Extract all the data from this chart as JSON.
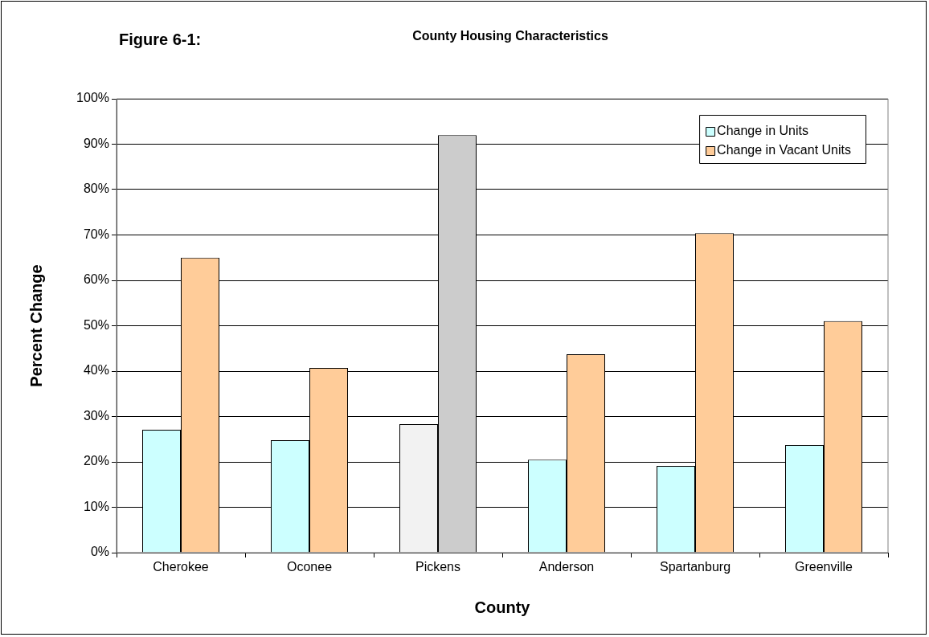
{
  "chart_data": {
    "type": "bar",
    "title": "County Housing Characteristics",
    "annotations": [
      "Figure 6-1:"
    ],
    "xlabel": "County",
    "ylabel": "Percent Change",
    "categories": [
      "Cherokee",
      "Oconee",
      "Pickens",
      "Anderson",
      "Spartanburg",
      "Greenville"
    ],
    "series": [
      {
        "name": "Change in Units",
        "color": "#ccffff",
        "colors": [
          "#ccffff",
          "#ccffff",
          "#f2f2f2",
          "#ccffff",
          "#ccffff",
          "#ccffff"
        ],
        "values": [
          27.1,
          24.8,
          28.3,
          20.5,
          19.1,
          23.7
        ]
      },
      {
        "name": "Change in Vacant Units",
        "color": "#ffcc99",
        "colors": [
          "#ffcc99",
          "#ffcc99",
          "#cccccc",
          "#ffcc99",
          "#ffcc99",
          "#ffcc99"
        ],
        "values": [
          65.0,
          40.7,
          92.0,
          43.7,
          70.4,
          51.0
        ]
      }
    ],
    "ylim": [
      0,
      100
    ],
    "yticks": [
      {
        "value": 0,
        "label": "0%"
      },
      {
        "value": 10,
        "label": "10%"
      },
      {
        "value": 20,
        "label": "20%"
      },
      {
        "value": 30,
        "label": "30%"
      },
      {
        "value": 40,
        "label": "40%"
      },
      {
        "value": 50,
        "label": "50%"
      },
      {
        "value": 60,
        "label": "60%"
      },
      {
        "value": 70,
        "label": "70%"
      },
      {
        "value": 80,
        "label": "80%"
      },
      {
        "value": 90,
        "label": "90%"
      },
      {
        "value": 100,
        "label": "100%"
      }
    ],
    "grid": "y",
    "legend": "top right"
  }
}
